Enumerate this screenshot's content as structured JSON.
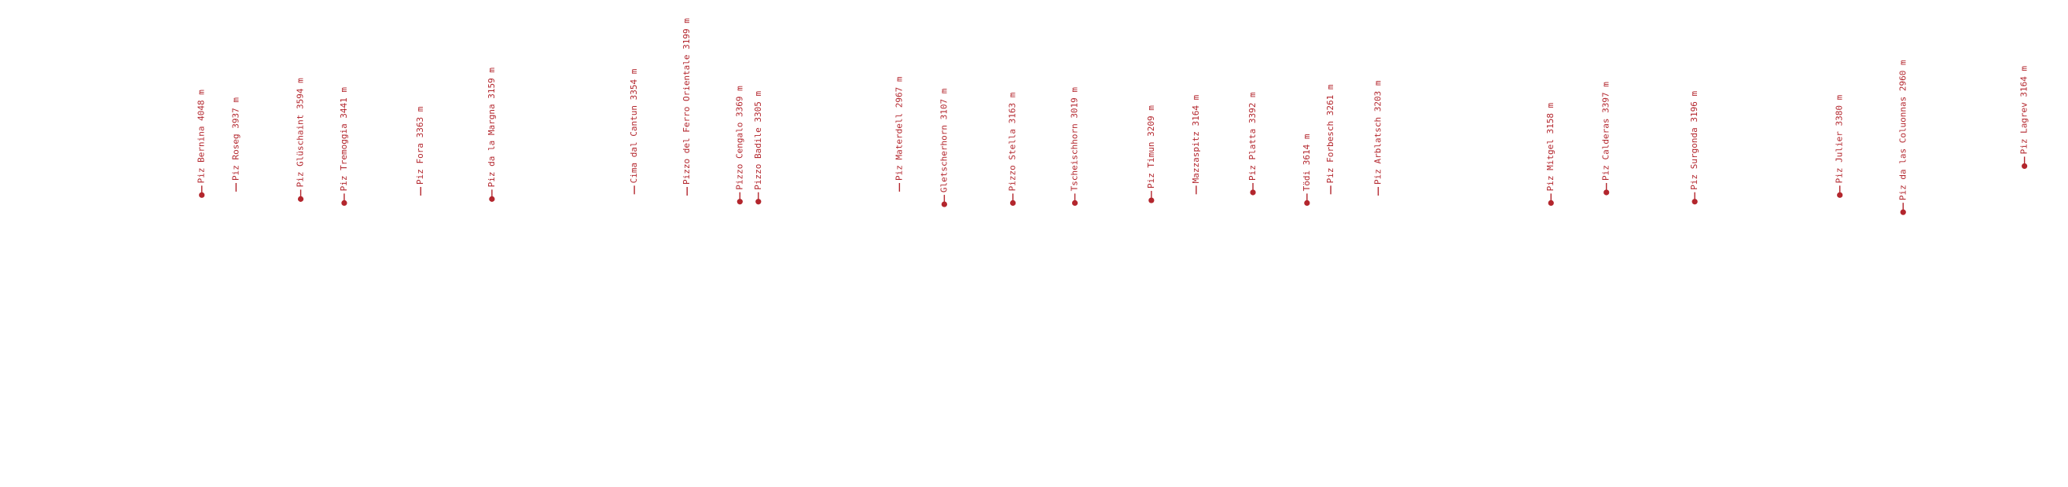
{
  "peaks": [
    {
      "label": "Piz Bernina 4048 m"
    },
    {
      "label": "Piz Roseg 3937 m"
    },
    {
      "label": "Piz Glüschaint 3594 m"
    },
    {
      "label": "Piz Tremoggia 3441 m"
    },
    {
      "label": "Piz Fora 3363 m"
    },
    {
      "label": "Piz da la Margna 3159 m"
    },
    {
      "label": "Cima dal Cantun 3354 m"
    },
    {
      "label": "Pizzo del Ferro Orientale 3199 m"
    },
    {
      "label": "Pizzo Cengalo 3369 m"
    },
    {
      "label": "Pizzo Badile 3305 m"
    },
    {
      "label": "Piz Materdell 2967 m"
    },
    {
      "label": "Gletscherhorn 3107 m"
    },
    {
      "label": "Pizzo Stella 3163 m"
    },
    {
      "label": "Tscheischhorn 3019 m"
    },
    {
      "label": "Piz Timun 3209 m"
    },
    {
      "label": "Mazzaspitz 3164 m"
    },
    {
      "label": "Piz Platta 3392 m"
    },
    {
      "label": "Tödi 3614 m"
    },
    {
      "label": "Piz Forbesch 3261 m"
    },
    {
      "label": "Piz Arblatsch 3203 m"
    },
    {
      "label": "Piz Mitgel 3158 m"
    },
    {
      "label": "Piz Calderas 3397 m"
    },
    {
      "label": "Piz Surgonda 3196 m"
    },
    {
      "label": "Piz Julier 3380 m"
    },
    {
      "label": "Piz da las Coluonnas 2960 m"
    },
    {
      "label": "Piz Lagrev 3164 m"
    }
  ]
}
